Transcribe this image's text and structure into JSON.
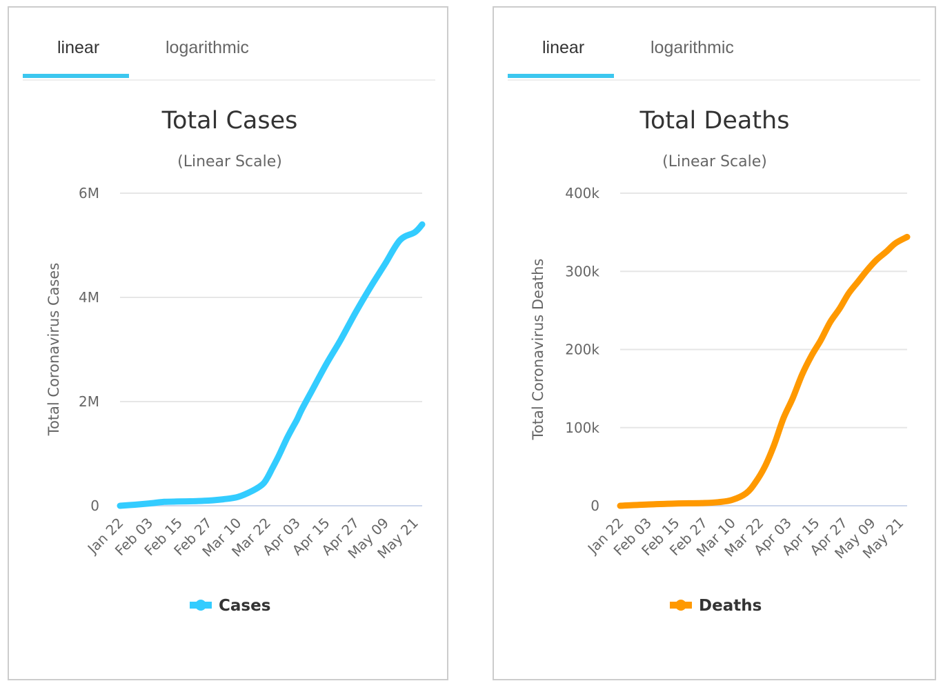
{
  "panels": [
    {
      "tabs": [
        {
          "label": "linear",
          "active": true
        },
        {
          "label": "logarithmic",
          "active": false
        }
      ],
      "accent": "#3cc7ef"
    },
    {
      "tabs": [
        {
          "label": "linear",
          "active": true
        },
        {
          "label": "logarithmic",
          "active": false
        }
      ],
      "accent": "#3cc7ef"
    }
  ],
  "chart_data": [
    {
      "type": "line",
      "title": "Total Cases",
      "subtitle": "(Linear Scale)",
      "ylabel": "Total Coronavirus Cases",
      "xlabel": "",
      "ylim": [
        0,
        6000000
      ],
      "yticks": [
        0,
        2000000,
        4000000,
        6000000
      ],
      "ytick_labels": [
        "0",
        "2M",
        "4M",
        "6M"
      ],
      "xtick_labels": [
        "Jan 22",
        "Feb 03",
        "Feb 15",
        "Feb 27",
        "Mar 10",
        "Mar 22",
        "Apr 03",
        "Apr 15",
        "Apr 27",
        "May 09",
        "May 21"
      ],
      "grid": true,
      "legend": "bottom-center",
      "color": "#33ccff",
      "series": [
        {
          "name": "Cases",
          "x_days": [
            0,
            6,
            12,
            18,
            24,
            30,
            36,
            42,
            48,
            54,
            58,
            60,
            62,
            64,
            66,
            68,
            70,
            72,
            74,
            78,
            84,
            90,
            96,
            102,
            108,
            114,
            120,
            123
          ],
          "values": [
            555,
            20000,
            45000,
            75000,
            82000,
            88000,
            100000,
            125000,
            170000,
            290000,
            410000,
            540000,
            720000,
            900000,
            1100000,
            1300000,
            1480000,
            1650000,
            1850000,
            2200000,
            2720000,
            3200000,
            3720000,
            4200000,
            4650000,
            5100000,
            5250000,
            5400000
          ]
        }
      ]
    },
    {
      "type": "line",
      "title": "Total Deaths",
      "subtitle": "(Linear Scale)",
      "ylabel": "Total Coronavirus Deaths",
      "xlabel": "",
      "ylim": [
        0,
        400000
      ],
      "yticks": [
        0,
        100000,
        200000,
        300000,
        400000
      ],
      "ytick_labels": [
        "0",
        "100k",
        "200k",
        "300k",
        "400k"
      ],
      "xtick_labels": [
        "Jan 22",
        "Feb 03",
        "Feb 15",
        "Feb 27",
        "Mar 10",
        "Mar 22",
        "Apr 03",
        "Apr 15",
        "Apr 27",
        "May 09",
        "May 21"
      ],
      "grid": true,
      "legend": "bottom-center",
      "color": "#ff9900",
      "series": [
        {
          "name": "Deaths",
          "x_days": [
            0,
            12,
            24,
            36,
            42,
            48,
            54,
            58,
            62,
            66,
            70,
            74,
            78,
            82,
            86,
            90,
            94,
            98,
            102,
            106,
            110,
            114,
            118,
            123
          ],
          "values": [
            17,
            1700,
            2900,
            3500,
            4600,
            7500,
            16000,
            30000,
            50000,
            78000,
            112000,
            138000,
            168000,
            192000,
            212000,
            235000,
            252000,
            272000,
            287000,
            302000,
            315000,
            325000,
            336000,
            344000
          ]
        }
      ]
    }
  ]
}
